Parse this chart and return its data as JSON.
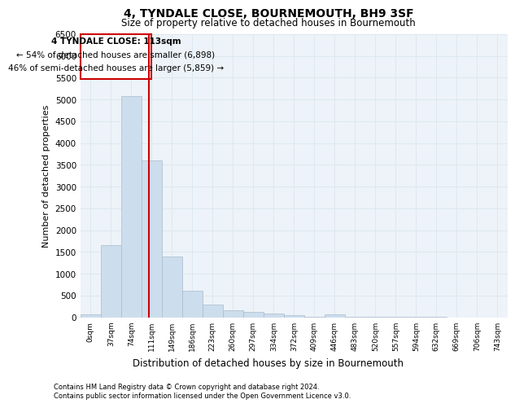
{
  "title": "4, TYNDALE CLOSE, BOURNEMOUTH, BH9 3SF",
  "subtitle": "Size of property relative to detached houses in Bournemouth",
  "xlabel": "Distribution of detached houses by size in Bournemouth",
  "ylabel": "Number of detached properties",
  "footnote1": "Contains HM Land Registry data © Crown copyright and database right 2024.",
  "footnote2": "Contains public sector information licensed under the Open Government Licence v3.0.",
  "bar_labels": [
    "0sqm",
    "37sqm",
    "74sqm",
    "111sqm",
    "149sqm",
    "186sqm",
    "223sqm",
    "260sqm",
    "297sqm",
    "334sqm",
    "372sqm",
    "409sqm",
    "446sqm",
    "483sqm",
    "520sqm",
    "557sqm",
    "594sqm",
    "632sqm",
    "669sqm",
    "706sqm",
    "743sqm"
  ],
  "bar_values": [
    60,
    1650,
    5080,
    3600,
    1400,
    600,
    290,
    155,
    120,
    90,
    50,
    10,
    60,
    5,
    3,
    2,
    1,
    1,
    0,
    0,
    0
  ],
  "bar_color": "#ccdded",
  "bar_edge_color": "#aabbcc",
  "grid_color": "#dde8f0",
  "ylim": [
    0,
    6500
  ],
  "yticks": [
    0,
    500,
    1000,
    1500,
    2000,
    2500,
    3000,
    3500,
    4000,
    4500,
    5000,
    5500,
    6000,
    6500
  ],
  "marker_label": "4 TYNDALE CLOSE: 113sqm",
  "annotation_line1": "← 54% of detached houses are smaller (6,898)",
  "annotation_line2": "46% of semi-detached houses are larger (5,859) →",
  "annotation_box_color": "#cc0000",
  "vline_color": "#cc0000",
  "vline_position": 2.88,
  "background_color": "#ffffff",
  "plot_bg_color": "#edf3f8"
}
